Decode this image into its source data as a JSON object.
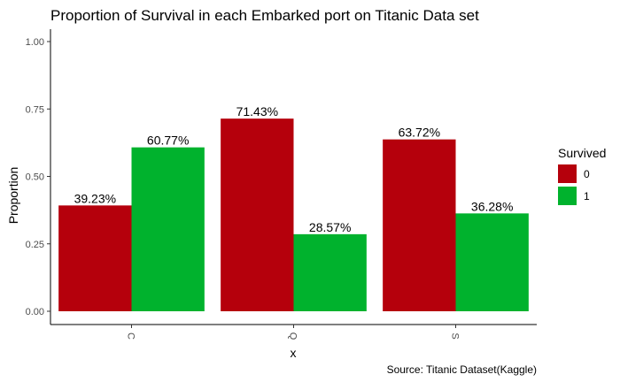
{
  "chart_data": {
    "type": "bar",
    "title": "Proportion of Survival in each Embarked port on Titanic Data set",
    "xlabel": "x",
    "ylabel": "Proportion",
    "caption": "Source: Titanic Dataset(Kaggle)",
    "categories": [
      "C",
      "Q",
      "S"
    ],
    "ylim": [
      0,
      1.0
    ],
    "yticks": [
      "0.00",
      "0.25",
      "0.50",
      "0.75",
      "1.00"
    ],
    "legend": {
      "title": "Survived",
      "position": "right"
    },
    "grid": false,
    "series": [
      {
        "name": "0",
        "color": "#b5000c",
        "values": [
          0.3923,
          0.7143,
          0.6372
        ],
        "labels": [
          "39.23%",
          "71.43%",
          "63.72%"
        ]
      },
      {
        "name": "1",
        "color": "#00b22d",
        "values": [
          0.6077,
          0.2857,
          0.3628
        ],
        "labels": [
          "60.77%",
          "28.57%",
          "36.28%"
        ]
      }
    ]
  }
}
